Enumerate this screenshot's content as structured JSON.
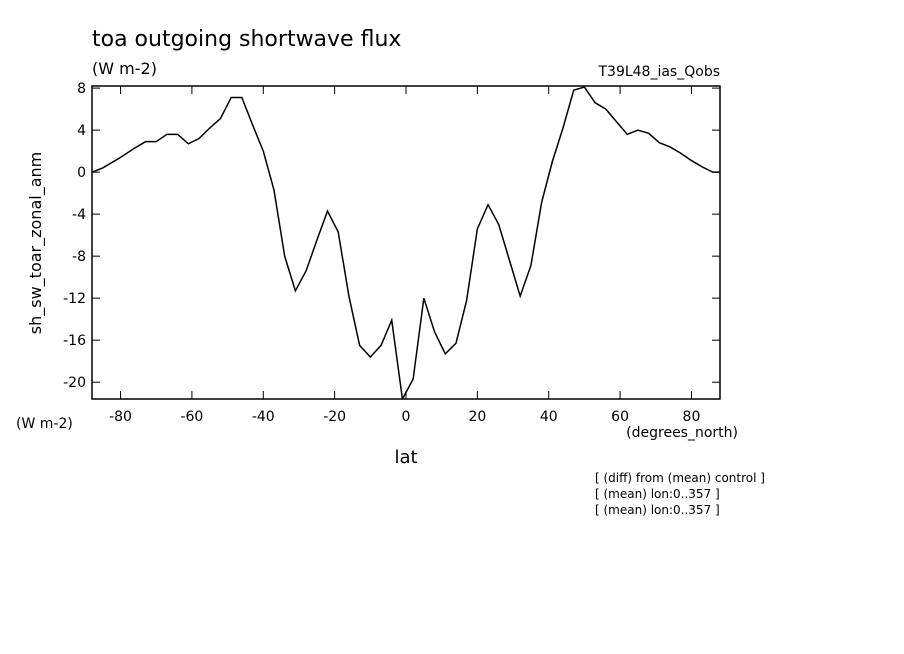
{
  "chart_data": {
    "type": "line",
    "title": "toa outgoing shortwave flux",
    "units_top": "(W m-2)",
    "run_label": "T39L48_ias_Qobs",
    "y_label": "sh_sw_toar_zonal_anm",
    "y_units": "(W m-2)",
    "x_units": "(degrees_north)",
    "x_label": "lat",
    "notes": [
      "[ (diff) from (mean) control ]",
      "[ (mean) lon:0..357 ]",
      "[ (mean) lon:0..357 ]"
    ],
    "x": [
      -88,
      -85,
      -80,
      -76,
      -73,
      -70,
      -67,
      -64,
      -61,
      -58,
      -55,
      -52,
      -49,
      -46,
      -43,
      -40,
      -37,
      -34,
      -31,
      -28,
      -25,
      -22,
      -19,
      -16,
      -13,
      -10,
      -7,
      -4,
      -1,
      2,
      5,
      8,
      11,
      14,
      17,
      20,
      23,
      26,
      29,
      32,
      35,
      38,
      41,
      44,
      47,
      50,
      53,
      56,
      59,
      62,
      65,
      68,
      71,
      74,
      77,
      80,
      83,
      86,
      88
    ],
    "series": [
      {
        "color": "#000000",
        "values": [
          0.0,
          0.4,
          1.4,
          2.3,
          2.9,
          2.9,
          3.6,
          3.6,
          2.7,
          3.2,
          4.2,
          5.1,
          7.1,
          7.1,
          4.5,
          2.0,
          -1.7,
          -8.0,
          -11.3,
          -9.4,
          -6.5,
          -3.7,
          -5.7,
          -11.8,
          -16.5,
          -17.6,
          -16.5,
          -14.1,
          -21.6,
          -19.7,
          -12.0,
          -15.2,
          -17.3,
          -16.3,
          -12.2,
          -5.4,
          -3.1,
          -5.0,
          -8.4,
          -11.8,
          -8.9,
          -2.9,
          1.0,
          4.2,
          7.8,
          8.1,
          6.6,
          6.0,
          4.8,
          3.6,
          4.0,
          3.7,
          2.8,
          2.4,
          1.8,
          1.1,
          0.5,
          0.0,
          0.0
        ]
      }
    ],
    "xlim": [
      -88,
      88
    ],
    "ylim": [
      -21.6,
      8.2
    ],
    "xticks": [
      -80,
      -60,
      -40,
      -20,
      0,
      20,
      40,
      60,
      80
    ],
    "yticks": [
      -20,
      -16,
      -12,
      -8,
      -4,
      0,
      4,
      8
    ]
  }
}
